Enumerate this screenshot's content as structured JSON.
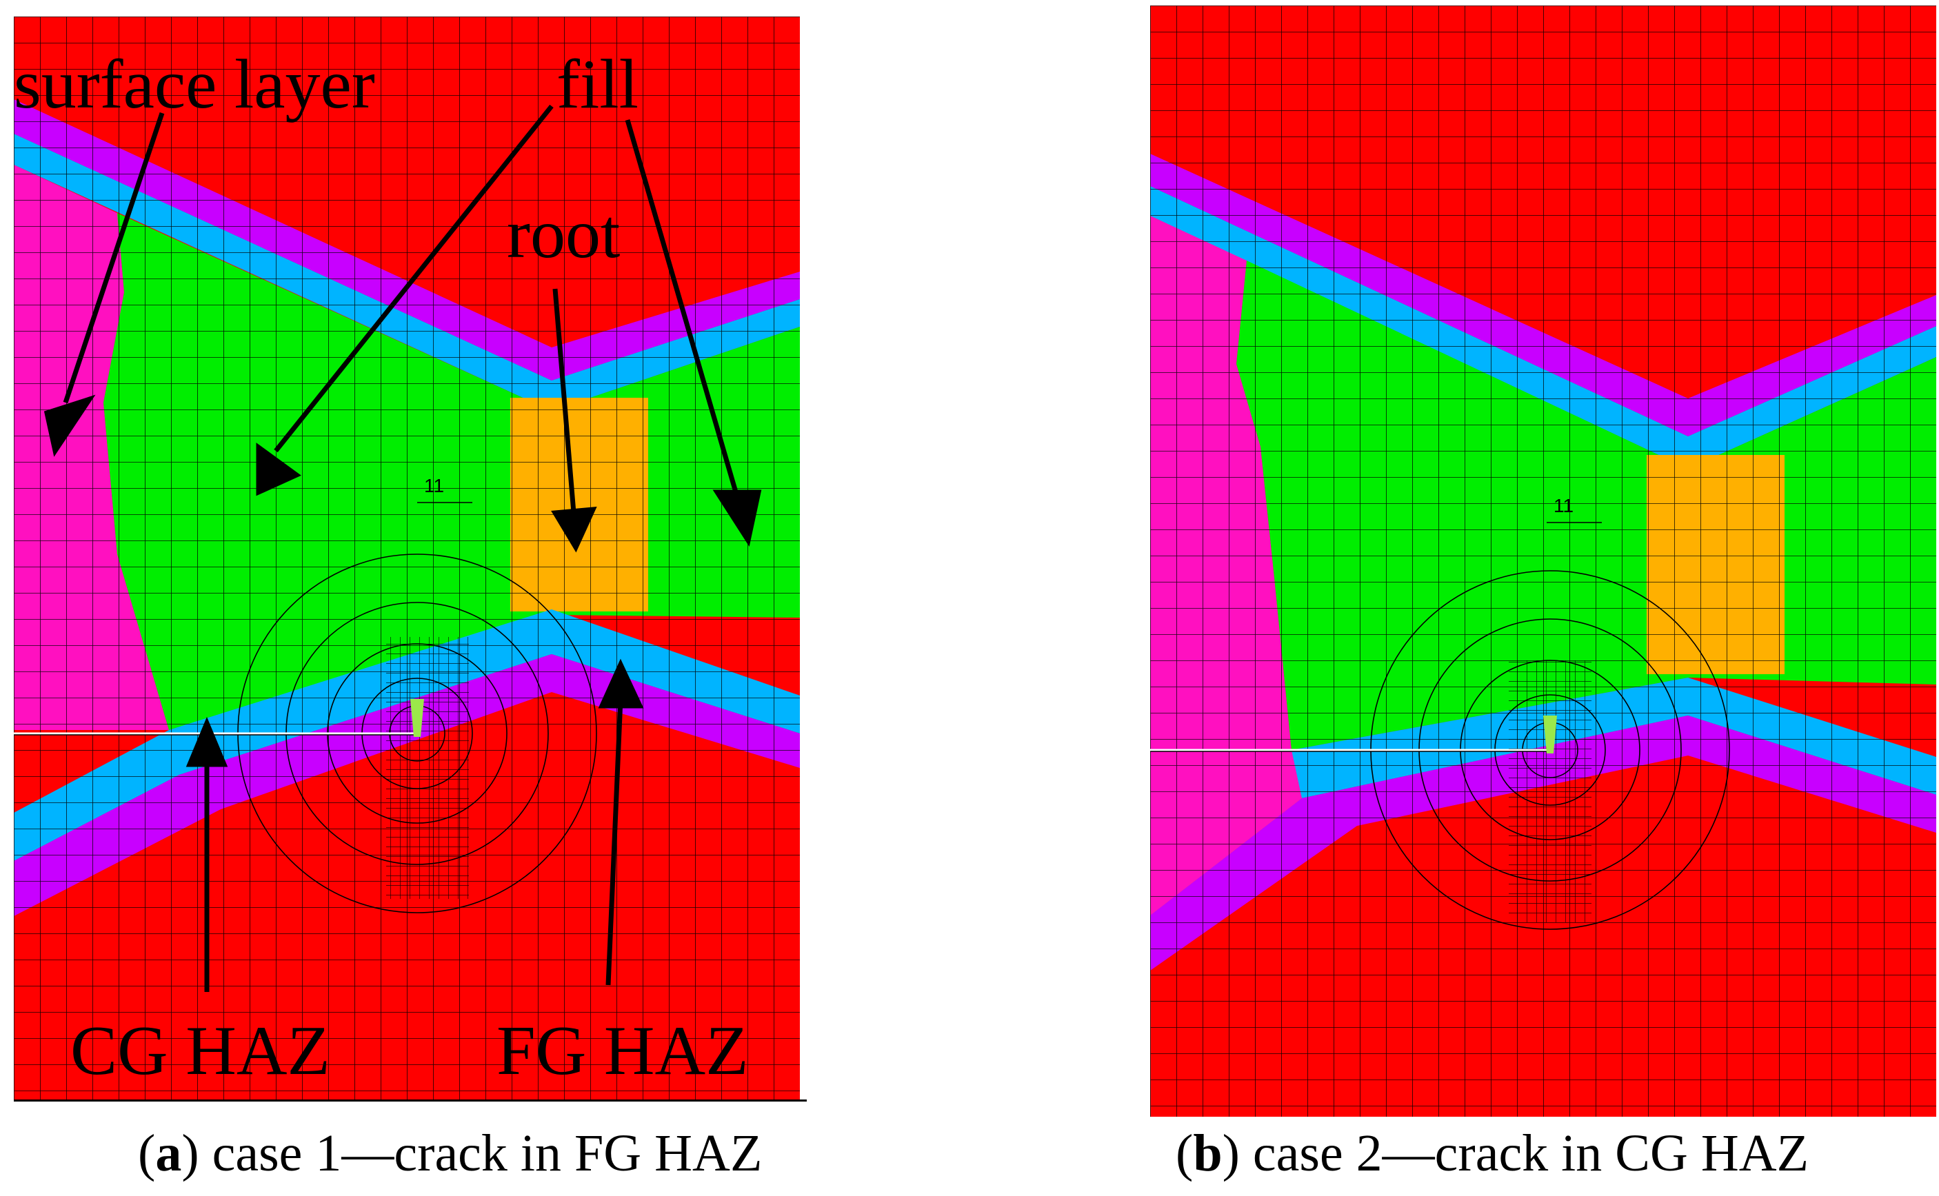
{
  "panels": [
    {
      "id": "a",
      "letter": "a",
      "caption": "case 1—crack in FG HAZ",
      "element_label": "11",
      "labels": {
        "surface_layer": "surface layer",
        "fill": "fill",
        "root": "root",
        "cg_haz": "CG HAZ",
        "fg_haz": "FG HAZ"
      }
    },
    {
      "id": "b",
      "letter": "b",
      "caption": "case 2—crack in CG HAZ",
      "element_label": "11"
    }
  ],
  "colors": {
    "base_metal": "#ff0000",
    "surface_layer": "#ff10c0",
    "fill": "#00ee00",
    "root": "#ffb000",
    "haz_cg": "#00b4ff",
    "haz_fg": "#c800ff",
    "mesh": "#000000"
  }
}
